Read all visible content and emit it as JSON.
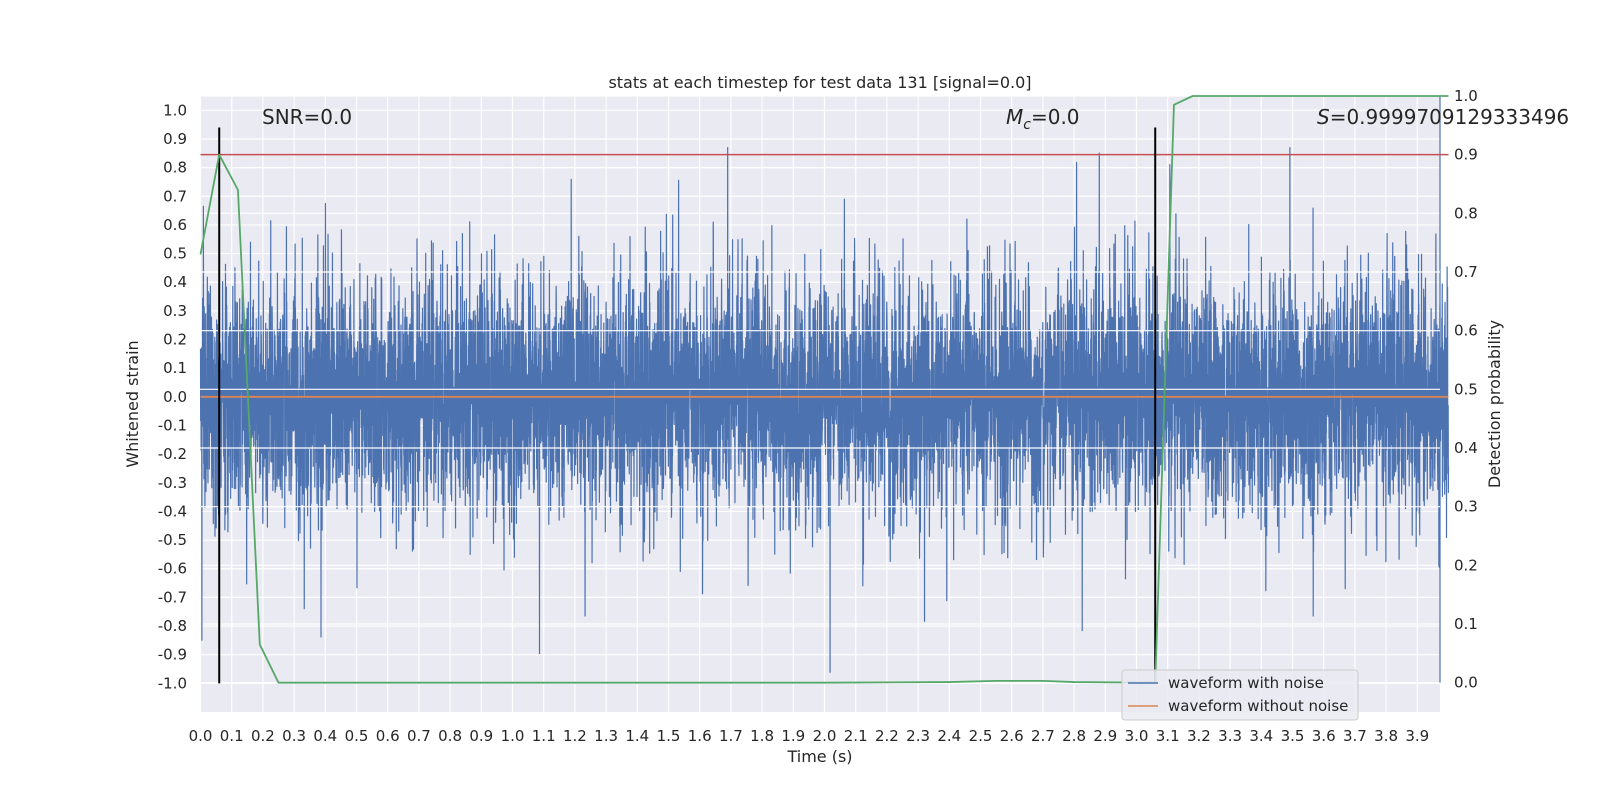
{
  "chart_data": {
    "type": "line",
    "title": "stats at each timestep for test data 131 [signal=0.0]",
    "xlabel": "Time (s)",
    "ylabel": "Whitened strain",
    "y2label": "Detection probability",
    "xlim": [
      0.0,
      4.0
    ],
    "ylim": [
      -1.1,
      1.05
    ],
    "y2lim": [
      -0.05,
      1.0
    ],
    "x_ticks": [
      0.0,
      0.1,
      0.2,
      0.3,
      0.4,
      0.5,
      0.6,
      0.7,
      0.8,
      0.9,
      1.0,
      1.1,
      1.2,
      1.3,
      1.4,
      1.5,
      1.6,
      1.7,
      1.8,
      1.9,
      2.0,
      2.1,
      2.2,
      2.3,
      2.4,
      2.5,
      2.6,
      2.7,
      2.8,
      2.9,
      3.0,
      3.1,
      3.2,
      3.3,
      3.4,
      3.5,
      3.6,
      3.7,
      3.8,
      3.9
    ],
    "x_tick_labels": [
      "0.0",
      "0.1",
      "0.2",
      "0.3",
      "0.4",
      "0.5",
      "0.6",
      "0.7",
      "0.8",
      "0.9",
      "1.0",
      "1.1",
      "1.2",
      "1.3",
      "1.4",
      "1.5",
      "1.6",
      "1.7",
      "1.8",
      "1.9",
      "2.0",
      "2.1",
      "2.2",
      "2.3",
      "2.4",
      "2.5",
      "2.6",
      "2.7",
      "2.8",
      "2.9",
      "3.0",
      "3.1",
      "3.2",
      "3.3",
      "3.4",
      "3.5",
      "3.6",
      "3.7",
      "3.8",
      "3.9"
    ],
    "y_ticks": [
      1.0,
      0.9,
      0.8,
      0.7,
      0.6,
      0.5,
      0.4,
      0.3,
      0.2,
      0.1,
      0.0,
      -0.1,
      -0.2,
      -0.3,
      -0.4,
      -0.5,
      -0.6,
      -0.7,
      -0.8,
      -0.9,
      -1.0
    ],
    "y_tick_labels": [
      "1.0",
      "0.9",
      "0.8",
      "0.7",
      "0.6",
      "0.5",
      "0.4",
      "0.3",
      "0.2",
      "0.1",
      "0.0",
      "-0.1",
      "-0.2",
      "-0.3",
      "-0.4",
      "-0.5",
      "-0.6",
      "-0.7",
      "-0.8",
      "-0.9",
      "-1.0"
    ],
    "y2_ticks": [
      1.0,
      0.9,
      0.8,
      0.7,
      0.6,
      0.5,
      0.4,
      0.3,
      0.2,
      0.1,
      0.0
    ],
    "y2_tick_labels": [
      "1.0",
      "0.9",
      "0.8",
      "0.7",
      "0.6",
      "0.5",
      "0.4",
      "0.3",
      "0.2",
      "0.1",
      "0.0"
    ],
    "grid": true,
    "legend_position": "lower-right",
    "legend": [
      "waveform with noise",
      "waveform without noise"
    ],
    "annotations": {
      "snr": "SNR=0.0",
      "mc_symbol": "M",
      "mc_sub": "c",
      "mc_value": "=0.0",
      "s_symbol": "S",
      "s_value": "=0.9999709129333496"
    },
    "colors": {
      "noise": "#4c72b0",
      "clean": "#dd8452",
      "probability": "#55a868",
      "threshold": "#c44e52",
      "markers": "#000000",
      "plot_bg": "#eaeaf2",
      "grid": "#ffffff"
    },
    "noise_series": {
      "name": "waveform with noise",
      "n_points": 8192,
      "x_range": [
        0.0,
        4.0
      ],
      "approx_abs_max": 0.87,
      "approx_abs_min": -0.98
    },
    "clean_series": {
      "name": "waveform without noise",
      "x": [
        0.0,
        4.0
      ],
      "y": [
        0.0,
        0.0
      ]
    },
    "threshold_series": {
      "x": [
        0.0,
        4.0
      ],
      "y2": [
        0.9,
        0.9
      ]
    },
    "detection_probability": {
      "x": [
        0.0,
        0.06,
        0.12,
        0.19,
        0.25,
        0.5,
        1.0,
        1.5,
        2.0,
        2.4,
        2.55,
        2.7,
        2.8,
        3.06,
        3.12,
        3.18,
        3.5,
        4.0
      ],
      "y2": [
        0.73,
        0.9,
        0.84,
        0.065,
        0.0,
        0.0,
        0.0,
        0.0,
        0.0,
        0.001,
        0.003,
        0.003,
        0.001,
        0.0,
        0.985,
        1.0,
        1.0,
        1.0
      ]
    },
    "vertical_markers": {
      "x": [
        0.06,
        3.06
      ],
      "y_from": -1.0,
      "y_to": 0.94
    }
  }
}
